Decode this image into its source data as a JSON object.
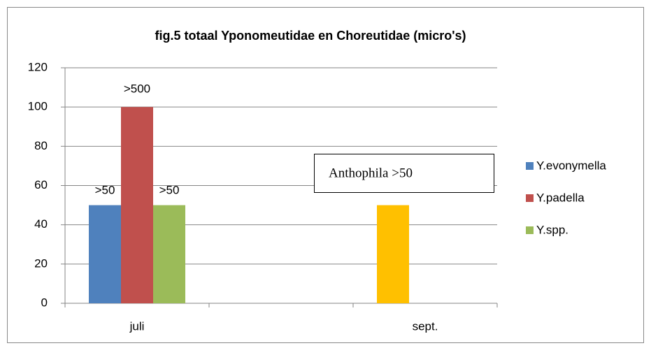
{
  "chart_data": {
    "type": "bar",
    "title": "fig.5  totaal Yponomeutidae en Choreutidae  (micro's)",
    "categories": [
      "juli",
      null,
      "sept."
    ],
    "series": [
      {
        "name": "Y.evonymella",
        "color": "#4f81bd",
        "values": [
          50,
          null,
          50
        ],
        "point_colors": [
          "#4f81bd",
          "#4f81bd",
          "#ffc000"
        ]
      },
      {
        "name": "Y.padella",
        "color": "#c0504d",
        "values": [
          100,
          null,
          null
        ]
      },
      {
        "name": "Y.spp.",
        "color": "#9bbb59",
        "values": [
          50,
          null,
          null
        ]
      }
    ],
    "annotations": [
      ">50",
      ">500",
      ">50",
      "Anthophila >50"
    ],
    "ylim": [
      0,
      120
    ],
    "yticks": [
      0,
      20,
      40,
      60,
      80,
      100,
      120
    ],
    "grid": true,
    "legend": "right"
  }
}
